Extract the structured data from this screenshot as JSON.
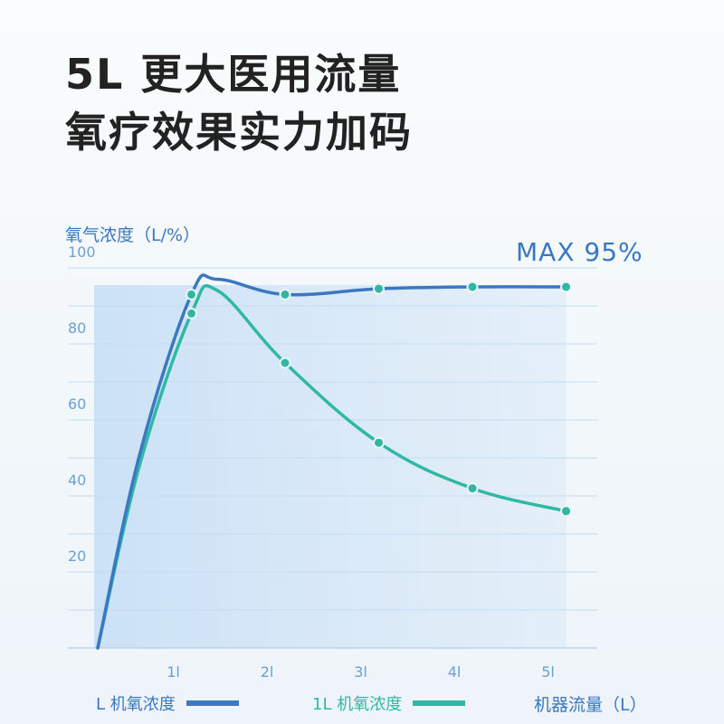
{
  "headline": {
    "line1": "5L 更大医用流量",
    "line2": "氧疗效果实力加码"
  },
  "max_label": "MAX 95%",
  "legend": {
    "series_a": "L 机氧浓度",
    "series_b": "1L 机氧浓度"
  },
  "colors": {
    "series_a": "#3a78c2",
    "series_b": "#2fb8a4",
    "highlight": "#cfe3f6"
  },
  "chart_data": {
    "type": "line",
    "ylabel": "氧气浓度（L/%）",
    "xlabel": "机器流量（L）",
    "ylim": [
      0,
      100
    ],
    "yticks": [
      100,
      80,
      60,
      40,
      20
    ],
    "categories": [
      "1l",
      "2l",
      "3l",
      "4l",
      "5l"
    ],
    "grid": true,
    "legend_position": "bottom",
    "series": [
      {
        "name": "L 机氧浓度",
        "x": [
          0,
          1,
          2,
          3,
          4,
          5
        ],
        "values": [
          0,
          93,
          93,
          94.5,
          95,
          95
        ]
      },
      {
        "name": "1L 机氧浓度",
        "x": [
          0,
          1,
          2,
          3,
          4,
          5
        ],
        "values": [
          0,
          88,
          75,
          54,
          42,
          36
        ]
      }
    ]
  }
}
